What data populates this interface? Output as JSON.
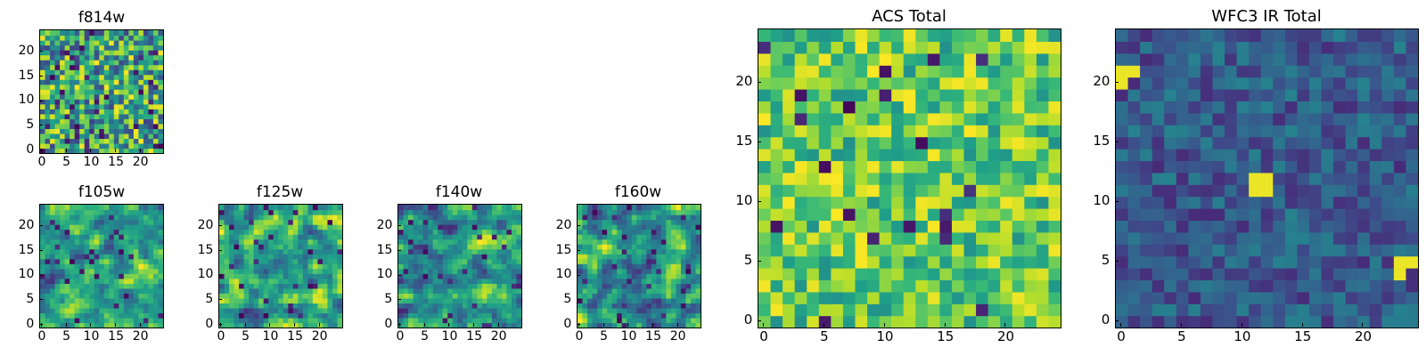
{
  "colormap": "viridis",
  "panels": [
    {
      "id": "f814w",
      "title": "f814w",
      "seed": 814,
      "level_range": [
        0.2,
        1.0
      ],
      "hot_fraction": 0.06,
      "smooth": 0,
      "xticks": [
        0,
        5,
        10,
        15,
        20
      ],
      "yticks": [
        0,
        5,
        10,
        15,
        20
      ],
      "ncells": 25
    },
    {
      "id": "f105w",
      "title": "f105w",
      "seed": 105,
      "level_range": [
        0.15,
        1.0
      ],
      "hot_fraction": 0.04,
      "smooth": 1,
      "xticks": [
        0,
        5,
        10,
        15,
        20
      ],
      "yticks": [
        0,
        5,
        10,
        15,
        20
      ],
      "ncells": 25
    },
    {
      "id": "f125w",
      "title": "f125w",
      "seed": 125,
      "level_range": [
        0.15,
        1.0
      ],
      "hot_fraction": 0.04,
      "smooth": 1,
      "xticks": [
        0,
        5,
        10,
        15,
        20
      ],
      "yticks": [
        0,
        5,
        10,
        15,
        20
      ],
      "ncells": 25
    },
    {
      "id": "f140w",
      "title": "f140w",
      "seed": 140,
      "level_range": [
        0.1,
        1.0
      ],
      "hot_fraction": 0.04,
      "smooth": 1,
      "xticks": [
        0,
        5,
        10,
        15,
        20
      ],
      "yticks": [
        0,
        5,
        10,
        15,
        20
      ],
      "ncells": 25
    },
    {
      "id": "f160w",
      "title": "f160w",
      "seed": 160,
      "level_range": [
        0.1,
        1.0
      ],
      "hot_fraction": 0.04,
      "smooth": 1,
      "xticks": [
        0,
        5,
        10,
        15,
        20
      ],
      "yticks": [
        0,
        5,
        10,
        15,
        20
      ],
      "ncells": 25
    },
    {
      "id": "acs-total",
      "title": "ACS Total",
      "seed": 901,
      "level_range": [
        0.5,
        1.0
      ],
      "hot_fraction": 0.05,
      "smooth": 0,
      "xticks": [
        0,
        5,
        10,
        15,
        20
      ],
      "yticks": [
        0,
        5,
        10,
        15,
        20
      ],
      "ncells": 25
    },
    {
      "id": "wfc3-ir-total",
      "title": "WFC3 IR Total",
      "seed": 902,
      "level_range": [
        0.12,
        0.45
      ],
      "hot_fraction": 0.0,
      "smooth": 0,
      "xticks": [
        0,
        5,
        10,
        15,
        20
      ],
      "yticks": [
        0,
        5,
        10,
        15,
        20
      ],
      "ncells": 25,
      "bright_spots": [
        {
          "x": 0,
          "y": 20
        },
        {
          "x": 1,
          "y": 21
        },
        {
          "x": 0,
          "y": 21
        },
        {
          "x": 11,
          "y": 11
        },
        {
          "x": 12,
          "y": 11
        },
        {
          "x": 11,
          "y": 12
        },
        {
          "x": 12,
          "y": 12
        },
        {
          "x": 23,
          "y": 5
        },
        {
          "x": 24,
          "y": 5
        },
        {
          "x": 23,
          "y": 4
        }
      ]
    }
  ],
  "chart_data": [
    {
      "type": "heatmap",
      "title": "f814w",
      "x_range": [
        0,
        24
      ],
      "y_range": [
        0,
        24
      ],
      "xticks": [
        0,
        5,
        10,
        15,
        20
      ],
      "yticks": [
        0,
        5,
        10,
        15,
        20
      ],
      "colormap": "viridis",
      "grid": false
    },
    {
      "type": "heatmap",
      "title": "f105w",
      "x_range": [
        0,
        24
      ],
      "y_range": [
        0,
        24
      ],
      "xticks": [
        0,
        5,
        10,
        15,
        20
      ],
      "yticks": [
        0,
        5,
        10,
        15,
        20
      ],
      "colormap": "viridis",
      "grid": false
    },
    {
      "type": "heatmap",
      "title": "f125w",
      "x_range": [
        0,
        24
      ],
      "y_range": [
        0,
        24
      ],
      "xticks": [
        0,
        5,
        10,
        15,
        20
      ],
      "yticks": [
        0,
        5,
        10,
        15,
        20
      ],
      "colormap": "viridis",
      "grid": false
    },
    {
      "type": "heatmap",
      "title": "f140w",
      "x_range": [
        0,
        24
      ],
      "y_range": [
        0,
        24
      ],
      "xticks": [
        0,
        5,
        10,
        15,
        20
      ],
      "yticks": [
        0,
        5,
        10,
        15,
        20
      ],
      "colormap": "viridis",
      "grid": false
    },
    {
      "type": "heatmap",
      "title": "f160w",
      "x_range": [
        0,
        24
      ],
      "y_range": [
        0,
        24
      ],
      "xticks": [
        0,
        5,
        10,
        15,
        20
      ],
      "yticks": [
        0,
        5,
        10,
        15,
        20
      ],
      "colormap": "viridis",
      "grid": false
    },
    {
      "type": "heatmap",
      "title": "ACS Total",
      "x_range": [
        0,
        24
      ],
      "y_range": [
        0,
        24
      ],
      "xticks": [
        0,
        5,
        10,
        15,
        20
      ],
      "yticks": [
        0,
        5,
        10,
        15,
        20
      ],
      "colormap": "viridis",
      "grid": false
    },
    {
      "type": "heatmap",
      "title": "WFC3 IR Total",
      "x_range": [
        0,
        24
      ],
      "y_range": [
        0,
        24
      ],
      "xticks": [
        0,
        5,
        10,
        15,
        20
      ],
      "yticks": [
        0,
        5,
        10,
        15,
        20
      ],
      "colormap": "viridis",
      "grid": false
    }
  ]
}
